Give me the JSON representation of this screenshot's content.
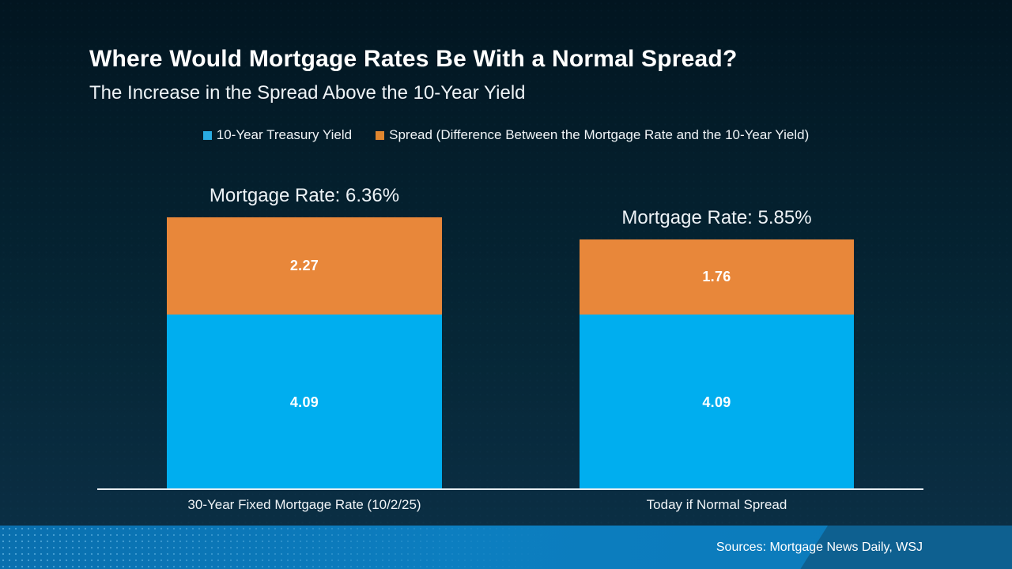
{
  "title": "Where Would Mortgage Rates Be With a Normal Spread?",
  "subtitle": "The Increase in the Spread Above the 10-Year Yield",
  "legend": {
    "items": [
      {
        "label": "10-Year Treasury Yield",
        "swatch_color": "#29abe2"
      },
      {
        "label": "Spread (Difference Between the Mortgage Rate and the 10-Year Yield)",
        "swatch_color": "#e0862f"
      }
    ]
  },
  "chart_data": {
    "type": "bar",
    "stacked": true,
    "title": "Where Would Mortgage Rates Be With a Normal Spread?",
    "subtitle": "The Increase in the Spread Above the 10-Year Yield",
    "categories": [
      "30-Year Fixed Mortgage Rate (10/2/25)",
      "Today if Normal Spread"
    ],
    "series": [
      {
        "name": "10-Year Treasury Yield",
        "color": "#00aeef",
        "values": [
          4.09,
          4.09
        ]
      },
      {
        "name": "Spread (Difference Between the Mortgage Rate and the 10-Year Yield)",
        "color": "#e8873a",
        "values": [
          2.27,
          1.76
        ]
      }
    ],
    "totals": [
      6.36,
      5.85
    ],
    "annotations": [
      "Mortgage Rate: 6.36%",
      "Mortgage Rate: 5.85%"
    ],
    "legend_position": "top",
    "grid": false,
    "y_axis_visible": false,
    "value_labels": "inside-center"
  },
  "footer": {
    "sources": "Sources: Mortgage News Daily, WSJ"
  },
  "colors": {
    "background_top": "#021520",
    "background_bottom": "#0c3147",
    "treasury_blue": "#00aeef",
    "spread_orange": "#e8873a",
    "footer_blue": "#0c7ec0",
    "footer_diagonal_blue": "#0f5a86",
    "axis_line": "#e7edf1",
    "text": "#ffffff"
  }
}
